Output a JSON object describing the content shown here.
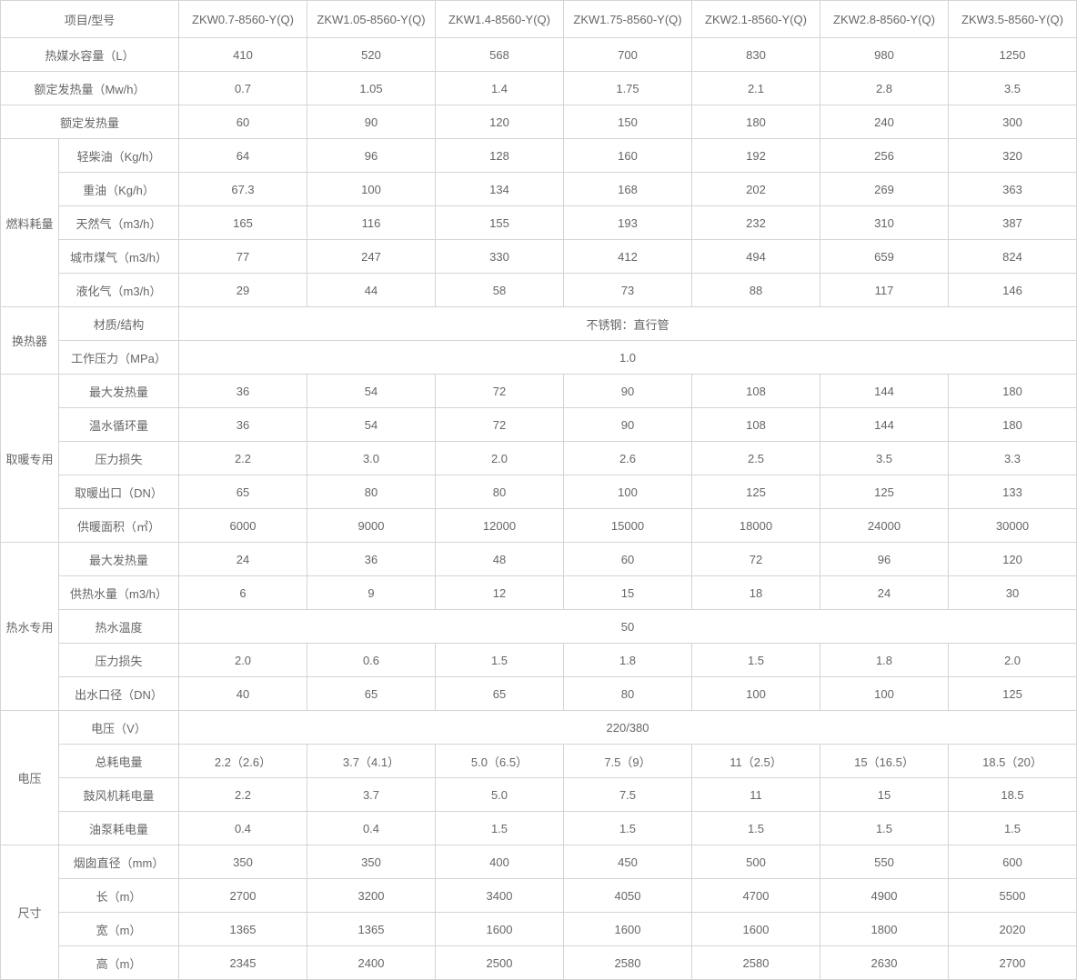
{
  "colors": {
    "border": "#d4d4d4",
    "text": "#666666",
    "background": "#ffffff"
  },
  "chart_data": {
    "type": "table",
    "corner_label": "项目/型号",
    "models": [
      "ZKW0.7-8560-Y(Q)",
      "ZKW1.05-8560-Y(Q)",
      "ZKW1.4-8560-Y(Q)",
      "ZKW1.75-8560-Y(Q)",
      "ZKW2.1-8560-Y(Q)",
      "ZKW2.8-8560-Y(Q)",
      "ZKW3.5-8560-Y(Q)"
    ],
    "rows": [
      {
        "label": "热媒水容量（L）",
        "label_colspan": 2,
        "values": [
          "410",
          "520",
          "568",
          "700",
          "830",
          "980",
          "1250"
        ]
      },
      {
        "label": "额定发热量（Mw/h）",
        "label_colspan": 2,
        "values": [
          "0.7",
          "1.05",
          "1.4",
          "1.75",
          "2.1",
          "2.8",
          "3.5"
        ]
      },
      {
        "label": "额定发热量",
        "label_colspan": 2,
        "values": [
          "60",
          "90",
          "120",
          "150",
          "180",
          "240",
          "300"
        ]
      },
      {
        "group": {
          "name": "燃料耗量",
          "rowspan": 5
        },
        "label": "轻柴油（Kg/h）",
        "values": [
          "64",
          "96",
          "128",
          "160",
          "192",
          "256",
          "320"
        ]
      },
      {
        "label": "重油（Kg/h）",
        "values": [
          "67.3",
          "100",
          "134",
          "168",
          "202",
          "269",
          "363"
        ]
      },
      {
        "label": "天然气（m3/h）",
        "values": [
          "165",
          "116",
          "155",
          "193",
          "232",
          "310",
          "387"
        ]
      },
      {
        "label": "城市煤气（m3/h）",
        "values": [
          "77",
          "247",
          "330",
          "412",
          "494",
          "659",
          "824"
        ]
      },
      {
        "label": "液化气（m3/h）",
        "values": [
          "29",
          "44",
          "58",
          "73",
          "88",
          "117",
          "146"
        ]
      },
      {
        "group": {
          "name": "换热器",
          "rowspan": 2
        },
        "label": "材质/结构",
        "merged": "不锈钢：直行管"
      },
      {
        "label": "工作压力（MPa）",
        "merged": "1.0"
      },
      {
        "group": {
          "name": "取暖专用",
          "rowspan": 5
        },
        "label": "最大发热量",
        "values": [
          "36",
          "54",
          "72",
          "90",
          "108",
          "144",
          "180"
        ]
      },
      {
        "label": "温水循环量",
        "values": [
          "36",
          "54",
          "72",
          "90",
          "108",
          "144",
          "180"
        ]
      },
      {
        "label": "压力损失",
        "values": [
          "2.2",
          "3.0",
          "2.0",
          "2.6",
          "2.5",
          "3.5",
          "3.3"
        ]
      },
      {
        "label": "取暖出口（DN）",
        "values": [
          "65",
          "80",
          "80",
          "100",
          "125",
          "125",
          "133"
        ]
      },
      {
        "label": "供暖面积（㎡）",
        "values": [
          "6000",
          "9000",
          "12000",
          "15000",
          "18000",
          "24000",
          "30000"
        ]
      },
      {
        "group": {
          "name": "热水专用",
          "rowspan": 5
        },
        "label": "最大发热量",
        "values": [
          "24",
          "36",
          "48",
          "60",
          "72",
          "96",
          "120"
        ]
      },
      {
        "label": "供热水量（m3/h）",
        "values": [
          "6",
          "9",
          "12",
          "15",
          "18",
          "24",
          "30"
        ]
      },
      {
        "label": "热水温度",
        "merged": "50"
      },
      {
        "label": "压力损失",
        "values": [
          "2.0",
          "0.6",
          "1.5",
          "1.8",
          "1.5",
          "1.8",
          "2.0"
        ]
      },
      {
        "label": "出水口径（DN）",
        "values": [
          "40",
          "65",
          "65",
          "80",
          "100",
          "100",
          "125"
        ]
      },
      {
        "group": {
          "name": "电压",
          "rowspan": 4
        },
        "label": "电压（V）",
        "merged": "220/380"
      },
      {
        "label": "总耗电量",
        "values": [
          "2.2（2.6）",
          "3.7（4.1）",
          "5.0（6.5）",
          "7.5（9）",
          "11（2.5）",
          "15（16.5）",
          "18.5（20）"
        ]
      },
      {
        "label": "鼓风机耗电量",
        "values": [
          "2.2",
          "3.7",
          "5.0",
          "7.5",
          "11",
          "15",
          "18.5"
        ]
      },
      {
        "label": "油泵耗电量",
        "values": [
          "0.4",
          "0.4",
          "1.5",
          "1.5",
          "1.5",
          "1.5",
          "1.5"
        ]
      },
      {
        "group": {
          "name": "尺寸",
          "rowspan": 4
        },
        "label": "烟囱直径（mm）",
        "values": [
          "350",
          "350",
          "400",
          "450",
          "500",
          "550",
          "600"
        ]
      },
      {
        "label": "长（m）",
        "values": [
          "2700",
          "3200",
          "3400",
          "4050",
          "4700",
          "4900",
          "5500"
        ]
      },
      {
        "label": "宽（m）",
        "values": [
          "1365",
          "1365",
          "1600",
          "1600",
          "1600",
          "1800",
          "2020"
        ]
      },
      {
        "label": "高（m）",
        "values": [
          "2345",
          "2400",
          "2500",
          "2580",
          "2580",
          "2630",
          "2700"
        ]
      }
    ]
  }
}
